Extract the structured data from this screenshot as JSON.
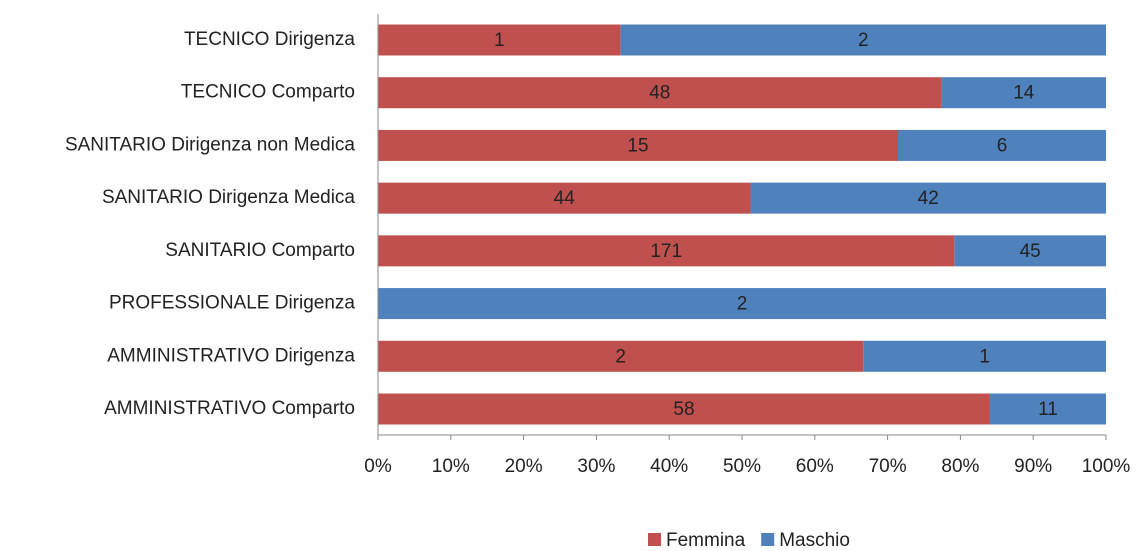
{
  "chart_data": {
    "type": "stacked-percent-barh",
    "categories": [
      "TECNICO Dirigenza",
      "TECNICO Comparto",
      "SANITARIO Dirigenza non Medica",
      "SANITARIO Dirigenza Medica",
      "SANITARIO Comparto",
      "PROFESSIONALE Dirigenza",
      "AMMINISTRATIVO Dirigenza",
      "AMMINISTRATIVO Comparto"
    ],
    "series": [
      {
        "name": "Femmina",
        "color": "#c0504d",
        "values": [
          1,
          48,
          15,
          44,
          171,
          null,
          2,
          58
        ]
      },
      {
        "name": "Maschio",
        "color": "#4f81bd",
        "values": [
          2,
          14,
          6,
          42,
          45,
          2,
          1,
          11
        ]
      }
    ],
    "xlim": [
      0,
      100
    ],
    "xticks": [
      {
        "value": 0,
        "label": "0%"
      },
      {
        "value": 10,
        "label": "10%"
      },
      {
        "value": 20,
        "label": "20%"
      },
      {
        "value": 30,
        "label": "30%"
      },
      {
        "value": 40,
        "label": "40%"
      },
      {
        "value": 50,
        "label": "50%"
      },
      {
        "value": 60,
        "label": "60%"
      },
      {
        "value": 70,
        "label": "70%"
      },
      {
        "value": 80,
        "label": "80%"
      },
      {
        "value": 90,
        "label": "90%"
      },
      {
        "value": 100,
        "label": "100%"
      }
    ],
    "legend": "bottom"
  }
}
